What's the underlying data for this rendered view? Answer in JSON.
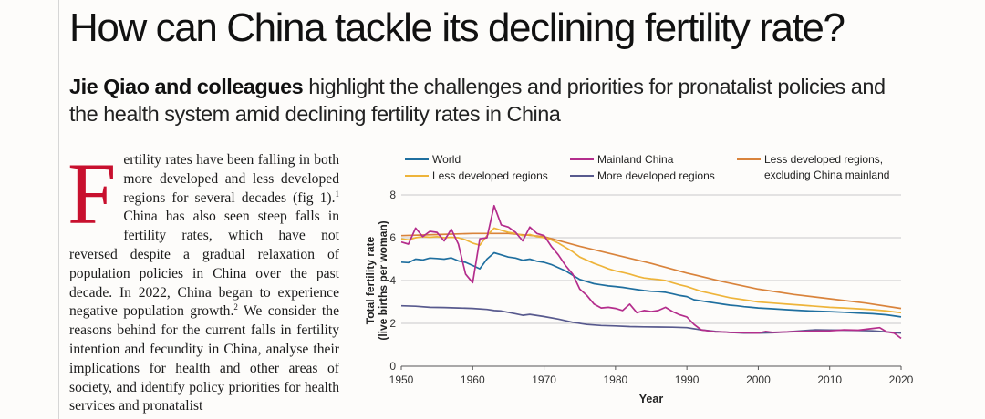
{
  "article": {
    "headline": "How can China tackle its declining fertility rate?",
    "standfirst_authors": "Jie Qiao and colleagues",
    "standfirst_rest": " highlight the challenges and priorities for pronatalist policies and the health system amid declining fertility rates in China",
    "dropcap": "F",
    "body_parts": [
      "ertility rates have been falling in both more developed and less developed regions for several decades (fig 1).",
      "1",
      " China has also seen steep falls in fertility rates, which have not reversed despite a gradual relaxation of population policies in China over the past decade. In 2022, China began to experience negative population growth.",
      "2",
      " We consider the reasons behind for the current falls in fertility intention and fecundity in China, analyse their implications for health and other areas of society, and identify policy priorities for health services and pronatalist"
    ]
  },
  "chart_data": {
    "type": "line",
    "xlabel": "Year",
    "ylabel": "Total fertility rate (live births per woman)",
    "xlim": [
      1950,
      2020
    ],
    "ylim": [
      0,
      8
    ],
    "xticks": [
      1950,
      1960,
      1970,
      1980,
      1990,
      2000,
      2010,
      2020
    ],
    "yticks": [
      0,
      2,
      4,
      6,
      8
    ],
    "grid": true,
    "legend_position": "top",
    "series": [
      {
        "name": "World",
        "color": "#1f6f9f",
        "points": [
          [
            1950,
            4.86
          ],
          [
            1951,
            4.84
          ],
          [
            1952,
            5.0
          ],
          [
            1953,
            4.96
          ],
          [
            1954,
            5.05
          ],
          [
            1955,
            5.03
          ],
          [
            1956,
            5.0
          ],
          [
            1957,
            5.06
          ],
          [
            1958,
            4.92
          ],
          [
            1959,
            4.85
          ],
          [
            1960,
            4.7
          ],
          [
            1961,
            4.55
          ],
          [
            1962,
            5.0
          ],
          [
            1963,
            5.3
          ],
          [
            1964,
            5.2
          ],
          [
            1965,
            5.1
          ],
          [
            1966,
            5.05
          ],
          [
            1967,
            4.95
          ],
          [
            1968,
            5.0
          ],
          [
            1969,
            4.9
          ],
          [
            1970,
            4.85
          ],
          [
            1971,
            4.75
          ],
          [
            1972,
            4.6
          ],
          [
            1973,
            4.45
          ],
          [
            1974,
            4.25
          ],
          [
            1975,
            4.05
          ],
          [
            1976,
            3.95
          ],
          [
            1977,
            3.85
          ],
          [
            1978,
            3.8
          ],
          [
            1979,
            3.75
          ],
          [
            1980,
            3.72
          ],
          [
            1981,
            3.68
          ],
          [
            1982,
            3.63
          ],
          [
            1983,
            3.58
          ],
          [
            1984,
            3.53
          ],
          [
            1985,
            3.5
          ],
          [
            1986,
            3.48
          ],
          [
            1987,
            3.45
          ],
          [
            1988,
            3.38
          ],
          [
            1989,
            3.3
          ],
          [
            1990,
            3.25
          ],
          [
            1991,
            3.1
          ],
          [
            1992,
            3.05
          ],
          [
            1993,
            3.0
          ],
          [
            1994,
            2.95
          ],
          [
            1995,
            2.9
          ],
          [
            1996,
            2.85
          ],
          [
            1997,
            2.82
          ],
          [
            1998,
            2.78
          ],
          [
            1999,
            2.75
          ],
          [
            2000,
            2.72
          ],
          [
            2002,
            2.68
          ],
          [
            2004,
            2.64
          ],
          [
            2006,
            2.6
          ],
          [
            2008,
            2.57
          ],
          [
            2010,
            2.55
          ],
          [
            2012,
            2.52
          ],
          [
            2014,
            2.48
          ],
          [
            2016,
            2.45
          ],
          [
            2018,
            2.4
          ],
          [
            2020,
            2.3
          ]
        ]
      },
      {
        "name": "Less developed regions",
        "color": "#eeb43a",
        "points": [
          [
            1950,
            5.95
          ],
          [
            1951,
            5.9
          ],
          [
            1952,
            6.0
          ],
          [
            1953,
            6.05
          ],
          [
            1954,
            6.02
          ],
          [
            1955,
            6.05
          ],
          [
            1956,
            6.0
          ],
          [
            1957,
            6.02
          ],
          [
            1958,
            6.0
          ],
          [
            1959,
            5.9
          ],
          [
            1960,
            5.75
          ],
          [
            1961,
            5.65
          ],
          [
            1962,
            6.1
          ],
          [
            1963,
            6.45
          ],
          [
            1964,
            6.35
          ],
          [
            1965,
            6.25
          ],
          [
            1966,
            6.2
          ],
          [
            1967,
            6.1
          ],
          [
            1968,
            6.15
          ],
          [
            1969,
            6.05
          ],
          [
            1970,
            6.0
          ],
          [
            1971,
            5.9
          ],
          [
            1972,
            5.75
          ],
          [
            1973,
            5.55
          ],
          [
            1974,
            5.35
          ],
          [
            1975,
            5.1
          ],
          [
            1976,
            4.95
          ],
          [
            1977,
            4.8
          ],
          [
            1978,
            4.68
          ],
          [
            1979,
            4.55
          ],
          [
            1980,
            4.45
          ],
          [
            1981,
            4.38
          ],
          [
            1982,
            4.3
          ],
          [
            1983,
            4.2
          ],
          [
            1984,
            4.12
          ],
          [
            1985,
            4.08
          ],
          [
            1986,
            4.05
          ],
          [
            1987,
            4.0
          ],
          [
            1988,
            3.9
          ],
          [
            1989,
            3.8
          ],
          [
            1990,
            3.72
          ],
          [
            1992,
            3.5
          ],
          [
            1994,
            3.35
          ],
          [
            1996,
            3.2
          ],
          [
            1998,
            3.1
          ],
          [
            2000,
            3.0
          ],
          [
            2002,
            2.95
          ],
          [
            2004,
            2.9
          ],
          [
            2006,
            2.85
          ],
          [
            2008,
            2.8
          ],
          [
            2010,
            2.75
          ],
          [
            2012,
            2.72
          ],
          [
            2014,
            2.68
          ],
          [
            2016,
            2.64
          ],
          [
            2018,
            2.58
          ],
          [
            2020,
            2.5
          ]
        ]
      },
      {
        "name": "Mainland China",
        "color": "#b42d8c",
        "points": [
          [
            1950,
            5.8
          ],
          [
            1951,
            5.7
          ],
          [
            1952,
            6.45
          ],
          [
            1953,
            6.05
          ],
          [
            1954,
            6.3
          ],
          [
            1955,
            6.25
          ],
          [
            1956,
            5.85
          ],
          [
            1957,
            6.4
          ],
          [
            1958,
            5.7
          ],
          [
            1959,
            4.3
          ],
          [
            1960,
            3.9
          ],
          [
            1961,
            5.95
          ],
          [
            1962,
            6.0
          ],
          [
            1963,
            7.5
          ],
          [
            1964,
            6.6
          ],
          [
            1965,
            6.5
          ],
          [
            1966,
            6.25
          ],
          [
            1967,
            5.85
          ],
          [
            1968,
            6.5
          ],
          [
            1969,
            6.2
          ],
          [
            1970,
            6.1
          ],
          [
            1971,
            5.6
          ],
          [
            1972,
            5.2
          ],
          [
            1973,
            4.7
          ],
          [
            1974,
            4.3
          ],
          [
            1975,
            3.6
          ],
          [
            1976,
            3.3
          ],
          [
            1977,
            2.9
          ],
          [
            1978,
            2.72
          ],
          [
            1979,
            2.75
          ],
          [
            1980,
            2.7
          ],
          [
            1981,
            2.6
          ],
          [
            1982,
            2.9
          ],
          [
            1983,
            2.5
          ],
          [
            1984,
            2.6
          ],
          [
            1985,
            2.55
          ],
          [
            1986,
            2.6
          ],
          [
            1987,
            2.75
          ],
          [
            1988,
            2.55
          ],
          [
            1989,
            2.4
          ],
          [
            1990,
            2.3
          ],
          [
            1991,
            1.95
          ],
          [
            1992,
            1.7
          ],
          [
            1993,
            1.65
          ],
          [
            1994,
            1.6
          ],
          [
            1995,
            1.6
          ],
          [
            1996,
            1.58
          ],
          [
            1998,
            1.56
          ],
          [
            2000,
            1.55
          ],
          [
            2001,
            1.62
          ],
          [
            2002,
            1.58
          ],
          [
            2004,
            1.6
          ],
          [
            2006,
            1.62
          ],
          [
            2008,
            1.64
          ],
          [
            2010,
            1.65
          ],
          [
            2012,
            1.7
          ],
          [
            2014,
            1.68
          ],
          [
            2016,
            1.76
          ],
          [
            2017,
            1.8
          ],
          [
            2018,
            1.6
          ],
          [
            2019,
            1.55
          ],
          [
            2020,
            1.3
          ]
        ]
      },
      {
        "name": "More developed regions",
        "color": "#585a8e",
        "points": [
          [
            1950,
            2.82
          ],
          [
            1952,
            2.8
          ],
          [
            1954,
            2.75
          ],
          [
            1956,
            2.74
          ],
          [
            1958,
            2.72
          ],
          [
            1960,
            2.7
          ],
          [
            1962,
            2.65
          ],
          [
            1963,
            2.6
          ],
          [
            1964,
            2.58
          ],
          [
            1966,
            2.45
          ],
          [
            1967,
            2.38
          ],
          [
            1968,
            2.42
          ],
          [
            1970,
            2.32
          ],
          [
            1972,
            2.2
          ],
          [
            1974,
            2.05
          ],
          [
            1976,
            1.95
          ],
          [
            1978,
            1.9
          ],
          [
            1980,
            1.88
          ],
          [
            1982,
            1.85
          ],
          [
            1984,
            1.84
          ],
          [
            1986,
            1.83
          ],
          [
            1988,
            1.82
          ],
          [
            1990,
            1.8
          ],
          [
            1992,
            1.7
          ],
          [
            1994,
            1.62
          ],
          [
            1996,
            1.58
          ],
          [
            1998,
            1.55
          ],
          [
            2000,
            1.55
          ],
          [
            2002,
            1.56
          ],
          [
            2004,
            1.6
          ],
          [
            2006,
            1.65
          ],
          [
            2008,
            1.7
          ],
          [
            2010,
            1.69
          ],
          [
            2012,
            1.68
          ],
          [
            2014,
            1.67
          ],
          [
            2016,
            1.65
          ],
          [
            2018,
            1.6
          ],
          [
            2020,
            1.55
          ]
        ]
      },
      {
        "name": "Less developed regions, excluding China mainland",
        "color": "#d9833b",
        "points": [
          [
            1950,
            6.1
          ],
          [
            1955,
            6.15
          ],
          [
            1960,
            6.2
          ],
          [
            1965,
            6.2
          ],
          [
            1970,
            6.05
          ],
          [
            1975,
            5.6
          ],
          [
            1980,
            5.2
          ],
          [
            1985,
            4.8
          ],
          [
            1990,
            4.35
          ],
          [
            1995,
            3.95
          ],
          [
            2000,
            3.6
          ],
          [
            2005,
            3.35
          ],
          [
            2010,
            3.15
          ],
          [
            2015,
            2.95
          ],
          [
            2020,
            2.7
          ]
        ]
      }
    ]
  }
}
